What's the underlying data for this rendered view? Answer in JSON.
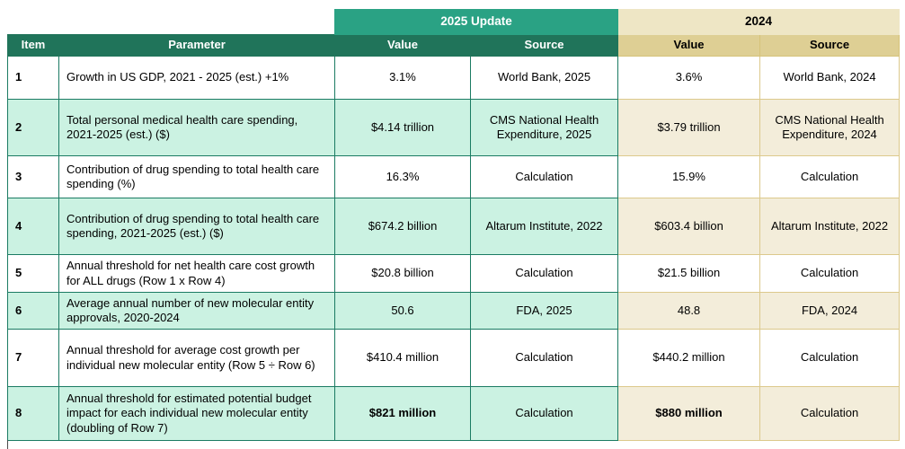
{
  "colors": {
    "header-green": "#20745A",
    "banner-green": "#2AA284",
    "row-green": "#CBF2E2",
    "border-green": "#1B7B63",
    "banner-cream": "#EEE6C5",
    "header-tan": "#DECF94",
    "row-cream": "#F3EDDA",
    "border-tan": "#DCC98C",
    "text-dark": "#000000",
    "text-light": "#FFFFFF"
  },
  "table": {
    "groups": {
      "g2025": "2025 Update",
      "g2024": "2024"
    },
    "headers": {
      "item": "Item",
      "parameter": "Parameter",
      "value_2025": "Value",
      "source_2025": "Source",
      "value_2024": "Value",
      "source_2024": "Source"
    },
    "rows": [
      {
        "item": "1",
        "parameter": "Growth in US GDP, 2021 - 2025 (est.) +1%",
        "value_2025": "3.1%",
        "source_2025": "World Bank, 2025",
        "value_2024": "3.6%",
        "source_2024": "World Bank, 2024",
        "emphasis": false
      },
      {
        "item": "2",
        "parameter": "Total personal medical health care spending, 2021-2025 (est.) ($)",
        "value_2025": "$4.14 trillion",
        "source_2025": "CMS National Health Expenditure, 2025",
        "value_2024": "$3.79 trillion",
        "source_2024": "CMS National Health Expenditure, 2024",
        "emphasis": false
      },
      {
        "item": "3",
        "parameter": "Contribution of drug spending to total health care spending (%)",
        "value_2025": "16.3%",
        "source_2025": "Calculation",
        "value_2024": "15.9%",
        "source_2024": "Calculation",
        "emphasis": false
      },
      {
        "item": "4",
        "parameter": "Contribution of drug spending to total health care spending, 2021-2025 (est.) ($)",
        "value_2025": "$674.2 billion",
        "source_2025": "Altarum Institute, 2022",
        "value_2024": "$603.4 billion",
        "source_2024": "Altarum Institute, 2022",
        "emphasis": false
      },
      {
        "item": "5",
        "parameter": "Annual threshold for net health care cost growth for ALL drugs (Row 1 x Row 4)",
        "value_2025": "$20.8 billion",
        "source_2025": "Calculation",
        "value_2024": "$21.5 billion",
        "source_2024": "Calculation",
        "emphasis": false
      },
      {
        "item": "6",
        "parameter": "Average annual number of new molecular entity approvals, 2020-2024",
        "value_2025": "50.6",
        "source_2025": "FDA, 2025",
        "value_2024": "48.8",
        "source_2024": "FDA, 2024",
        "emphasis": false
      },
      {
        "item": "7",
        "parameter": "Annual threshold for average cost growth per individual new molecular entity (Row 5 ÷ Row 6)",
        "value_2025": "$410.4 million",
        "source_2025": "Calculation",
        "value_2024": "$440.2 million",
        "source_2024": "Calculation",
        "emphasis": false
      },
      {
        "item": "8",
        "parameter": "Annual threshold for estimated potential budget impact for each individual new molecular entity (doubling of Row 7)",
        "value_2025": "$821 million",
        "source_2025": "Calculation",
        "value_2024": "$880 million",
        "source_2024": "Calculation",
        "emphasis": true
      }
    ]
  }
}
